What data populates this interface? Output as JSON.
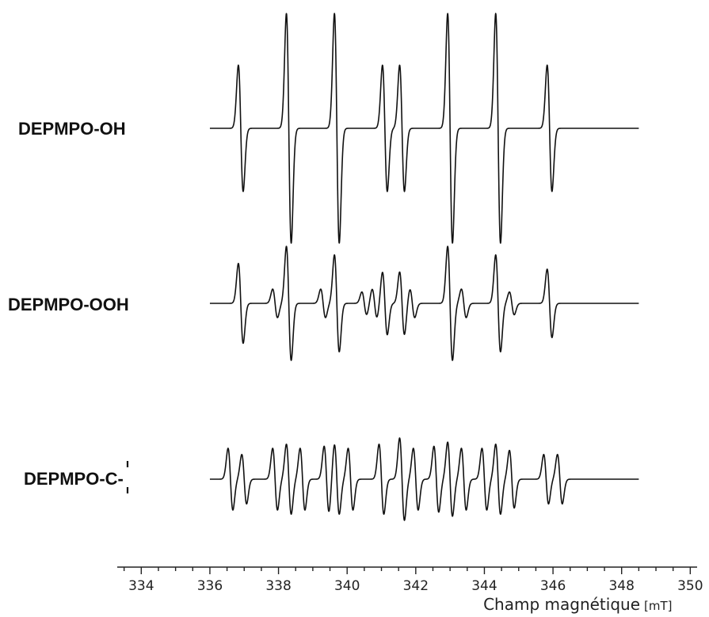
{
  "chart_data": {
    "type": "line",
    "title": "",
    "xlabel": "Champ magnétique",
    "xunit": "[mT]",
    "xlim": [
      333.3,
      350.2
    ],
    "xticks": [
      334,
      336,
      338,
      340,
      342,
      344,
      346,
      348,
      350
    ],
    "grid": false,
    "legend": "none",
    "trace_range": [
      336.0,
      348.5
    ],
    "series": [
      {
        "name": "DEPMPO-OH",
        "lines": [
          {
            "x": 336.9,
            "amp": 0.55
          },
          {
            "x": 338.3,
            "amp": 1.0
          },
          {
            "x": 339.7,
            "amp": 1.0
          },
          {
            "x": 341.1,
            "amp": 0.55
          },
          {
            "x": 341.6,
            "amp": 0.55
          },
          {
            "x": 343.0,
            "amp": 1.0
          },
          {
            "x": 344.4,
            "amp": 1.0
          },
          {
            "x": 345.9,
            "amp": 0.55
          }
        ]
      },
      {
        "name": "DEPMPO-OOH",
        "lines": [
          {
            "x": 336.9,
            "amp": 0.7
          },
          {
            "x": 337.9,
            "amp": 0.25
          },
          {
            "x": 338.3,
            "amp": 1.0
          },
          {
            "x": 339.3,
            "amp": 0.25
          },
          {
            "x": 339.7,
            "amp": 0.85
          },
          {
            "x": 340.5,
            "amp": 0.2
          },
          {
            "x": 340.8,
            "amp": 0.25
          },
          {
            "x": 341.1,
            "amp": 0.55
          },
          {
            "x": 341.6,
            "amp": 0.55
          },
          {
            "x": 341.9,
            "amp": 0.25
          },
          {
            "x": 343.0,
            "amp": 1.0
          },
          {
            "x": 343.4,
            "amp": 0.25
          },
          {
            "x": 344.4,
            "amp": 0.85
          },
          {
            "x": 344.8,
            "amp": 0.2
          },
          {
            "x": 345.9,
            "amp": 0.6
          }
        ]
      },
      {
        "name": "DEPMPO-C-",
        "lines": [
          {
            "x": 336.6,
            "amp": 0.75
          },
          {
            "x": 337.0,
            "amp": 0.6
          },
          {
            "x": 337.9,
            "amp": 0.75
          },
          {
            "x": 338.3,
            "amp": 0.85
          },
          {
            "x": 338.7,
            "amp": 0.75
          },
          {
            "x": 339.4,
            "amp": 0.8
          },
          {
            "x": 339.7,
            "amp": 0.85
          },
          {
            "x": 340.1,
            "amp": 0.75
          },
          {
            "x": 341.0,
            "amp": 0.85
          },
          {
            "x": 341.6,
            "amp": 1.0
          },
          {
            "x": 342.0,
            "amp": 0.75
          },
          {
            "x": 342.6,
            "amp": 0.8
          },
          {
            "x": 343.0,
            "amp": 0.9
          },
          {
            "x": 343.4,
            "amp": 0.75
          },
          {
            "x": 344.0,
            "amp": 0.75
          },
          {
            "x": 344.4,
            "amp": 0.85
          },
          {
            "x": 344.8,
            "amp": 0.7
          },
          {
            "x": 345.8,
            "amp": 0.6
          },
          {
            "x": 346.2,
            "amp": 0.6
          }
        ]
      }
    ]
  }
}
